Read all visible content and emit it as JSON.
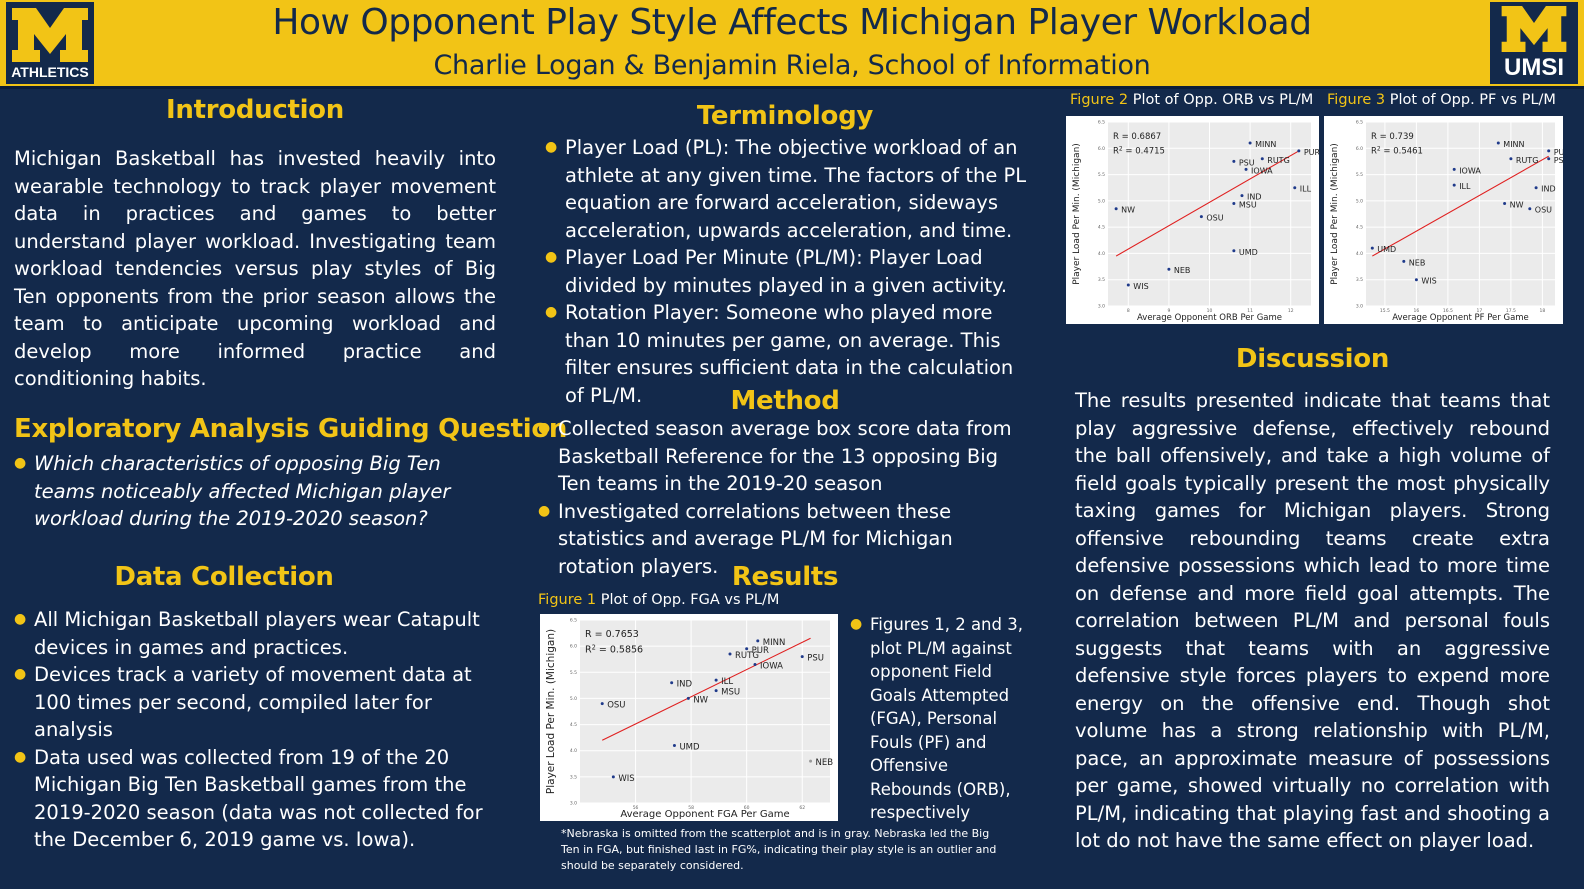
{
  "header": {
    "title": "How Opponent Play Style Affects Michigan Player Workload",
    "subtitle": "Charlie Logan & Benjamin Riela, School of Information",
    "logo_left_text": "ATHLETICS",
    "logo_right_text": "UMSI",
    "colors": {
      "maize": "#f2c416",
      "blue": "#13294b"
    }
  },
  "intro": {
    "heading": "Introduction",
    "text": "Michigan Basketball has invested heavily into wearable technology to track player movement data in practices and games to better understand player workload. Investigating team workload tendencies versus play styles of Big Ten opponents from the prior season allows the team to anticipate upcoming workload and develop more informed practice and conditioning habits."
  },
  "question": {
    "heading": "Exploratory Analysis Guiding Question",
    "items": [
      "Which characteristics of opposing Big Ten teams noticeably affected Michigan player workload during the 2019-2020 season?"
    ]
  },
  "data_collection": {
    "heading": "Data Collection",
    "items": [
      "All Michigan Basketball players wear Catapult devices in games and practices.",
      "Devices track a variety of movement data at 100 times per second, compiled later for analysis",
      "Data used was collected from 19 of the 20 Michigan Big Ten Basketball games from the 2019-2020 season (data was not collected for the December 6, 2019 game vs. Iowa)."
    ]
  },
  "terminology": {
    "heading": "Terminology",
    "items": [
      "Player Load (PL): The objective workload of an athlete at any given time. The factors of the PL equation are forward acceleration, sideways acceleration, upwards acceleration, and time.",
      "Player Load Per Minute (PL/M): Player Load divided by minutes played in a given activity.",
      "Rotation Player: Someone who played more than 10 minutes per game, on average. This filter ensures sufficient data in the calculation of PL/M."
    ]
  },
  "method": {
    "heading": "Method",
    "items": [
      "Collected season average box score data from Basketball Reference for the 13 opposing Big Ten teams in the 2019-20 season",
      "Investigated correlations between these statistics and average PL/M for Michigan rotation players."
    ]
  },
  "results": {
    "heading": "Results",
    "summary": "Figures 1, 2 and 3, plot PL/M against opponent Field Goals Attempted (FGA), Personal Fouls (PF) and Offensive Rebounds (ORB), respectively",
    "footnote": "*Nebraska is omitted from the scatterplot and is in gray. Nebraska led the Big Ten in FGA, but finished last in FG%, indicating their play style is an outlier and should be separately considered."
  },
  "discussion": {
    "heading": "Discussion",
    "text": "The results presented indicate that teams that play aggressive defense, effectively rebound the ball offensively, and take a high volume of field goals typically present the most physically taxing games for Michigan players. Strong offensive rebounding teams create extra defensive possessions which lead to more time on defense and more field goal attempts. The correlation between PL/M and personal fouls suggests that teams with an aggressive defensive style forces players to expend more energy on the offensive end. Though shot volume has a strong relationship with PL/M, pace, an approximate measure of possessions per game, showed virtually no correlation with PL/M, indicating that playing fast and shooting a lot do not have the same effect on player load."
  },
  "chart_data": [
    {
      "id": "fig1",
      "type": "scatter",
      "fig_label": "Figure 1",
      "caption": "Plot of Opp. FGA vs PL/M",
      "xlabel": "Average Opponent FGA Per Game",
      "ylabel": "Player Load Per Min. (Michigan)",
      "r_text": "R = 0.7653",
      "r2_text": "R",
      "r2_sup": "2",
      "r2_val": " = 0.5856",
      "xlim": [
        54,
        63
      ],
      "ylim": [
        3.0,
        6.5
      ],
      "points": [
        {
          "label": "MINN",
          "x": 60.4,
          "y": 6.1
        },
        {
          "label": "PUR",
          "x": 60.0,
          "y": 5.95
        },
        {
          "label": "RUTG",
          "x": 59.4,
          "y": 5.85
        },
        {
          "label": "IOWA",
          "x": 60.3,
          "y": 5.65
        },
        {
          "label": "PSU",
          "x": 62.0,
          "y": 5.8
        },
        {
          "label": "IND",
          "x": 57.3,
          "y": 5.3
        },
        {
          "label": "ILL",
          "x": 58.9,
          "y": 5.35
        },
        {
          "label": "MSU",
          "x": 58.9,
          "y": 5.15
        },
        {
          "label": "NW",
          "x": 57.9,
          "y": 5.0
        },
        {
          "label": "OSU",
          "x": 54.8,
          "y": 4.9
        },
        {
          "label": "UMD",
          "x": 57.4,
          "y": 4.1
        },
        {
          "label": "WIS",
          "x": 55.2,
          "y": 3.5
        },
        {
          "label": "NEB",
          "x": 62.3,
          "y": 3.8,
          "outlier": true
        }
      ],
      "trend": {
        "x0": 54.8,
        "y0": 4.2,
        "x1": 62.3,
        "y1": 6.15
      },
      "xticks": [
        56,
        58,
        60,
        62
      ],
      "yticks": [
        3.0,
        3.5,
        4.0,
        4.5,
        5.0,
        5.5,
        6.0,
        6.5
      ]
    },
    {
      "id": "fig2",
      "type": "scatter",
      "fig_label": "Figure 2",
      "caption": "Plot of Opp. ORB vs PL/M",
      "xlabel": "Average Opponent ORB Per Game",
      "ylabel": "Player Load Per Min. (Michigan)",
      "r_text": "R = 0.6867",
      "r2_text": "R",
      "r2_sup": "2",
      "r2_val": " = 0.4715",
      "xlim": [
        7.5,
        12.5
      ],
      "ylim": [
        3.0,
        6.5
      ],
      "points": [
        {
          "label": "MINN",
          "x": 11.0,
          "y": 6.1
        },
        {
          "label": "PUR",
          "x": 12.2,
          "y": 5.95
        },
        {
          "label": "PSU",
          "x": 10.6,
          "y": 5.75
        },
        {
          "label": "RUTG",
          "x": 11.3,
          "y": 5.8
        },
        {
          "label": "IOWA",
          "x": 10.9,
          "y": 5.6
        },
        {
          "label": "ILL",
          "x": 12.1,
          "y": 5.25
        },
        {
          "label": "IND",
          "x": 10.8,
          "y": 5.1
        },
        {
          "label": "MSU",
          "x": 10.6,
          "y": 4.95
        },
        {
          "label": "NW",
          "x": 7.7,
          "y": 4.85
        },
        {
          "label": "OSU",
          "x": 9.8,
          "y": 4.7
        },
        {
          "label": "UMD",
          "x": 10.6,
          "y": 4.05
        },
        {
          "label": "NEB",
          "x": 9.0,
          "y": 3.7
        },
        {
          "label": "WIS",
          "x": 8.0,
          "y": 3.4
        }
      ],
      "trend": {
        "x0": 7.7,
        "y0": 3.95,
        "x1": 12.2,
        "y1": 5.95
      },
      "xticks": [
        8,
        9,
        10,
        11,
        12
      ],
      "yticks": [
        3.0,
        3.5,
        4.0,
        4.5,
        5.0,
        5.5,
        6.0,
        6.5
      ]
    },
    {
      "id": "fig3",
      "type": "scatter",
      "fig_label": "Figure 3",
      "caption": "Plot of Opp. PF vs PL/M",
      "xlabel": "Average Opponent PF Per Game",
      "ylabel": "Player Load Per Min. (Michigan)",
      "r_text": "R = 0.739",
      "r2_text": "R",
      "r2_sup": "2",
      "r2_val": " = 0.5461",
      "xlim": [
        15.2,
        18.2
      ],
      "ylim": [
        3.0,
        6.5
      ],
      "points": [
        {
          "label": "MINN",
          "x": 17.3,
          "y": 6.1
        },
        {
          "label": "PUR",
          "x": 18.1,
          "y": 5.95
        },
        {
          "label": "PSU",
          "x": 18.1,
          "y": 5.8
        },
        {
          "label": "RUTG",
          "x": 17.5,
          "y": 5.8
        },
        {
          "label": "IOWA",
          "x": 16.6,
          "y": 5.6
        },
        {
          "label": "ILL",
          "x": 16.6,
          "y": 5.3
        },
        {
          "label": "IND",
          "x": 17.9,
          "y": 5.25
        },
        {
          "label": "NW",
          "x": 17.4,
          "y": 4.95
        },
        {
          "label": "OSU",
          "x": 17.8,
          "y": 4.85
        },
        {
          "label": "UMD",
          "x": 15.3,
          "y": 4.1
        },
        {
          "label": "NEB",
          "x": 15.8,
          "y": 3.85
        },
        {
          "label": "WIS",
          "x": 16.0,
          "y": 3.5
        }
      ],
      "trend": {
        "x0": 15.3,
        "y0": 3.95,
        "x1": 18.1,
        "y1": 5.85
      },
      "xticks": [
        15.5,
        16,
        16.5,
        17,
        17.5,
        18
      ],
      "yticks": [
        3.0,
        3.5,
        4.0,
        4.5,
        5.0,
        5.5,
        6.0,
        6.5
      ]
    }
  ]
}
